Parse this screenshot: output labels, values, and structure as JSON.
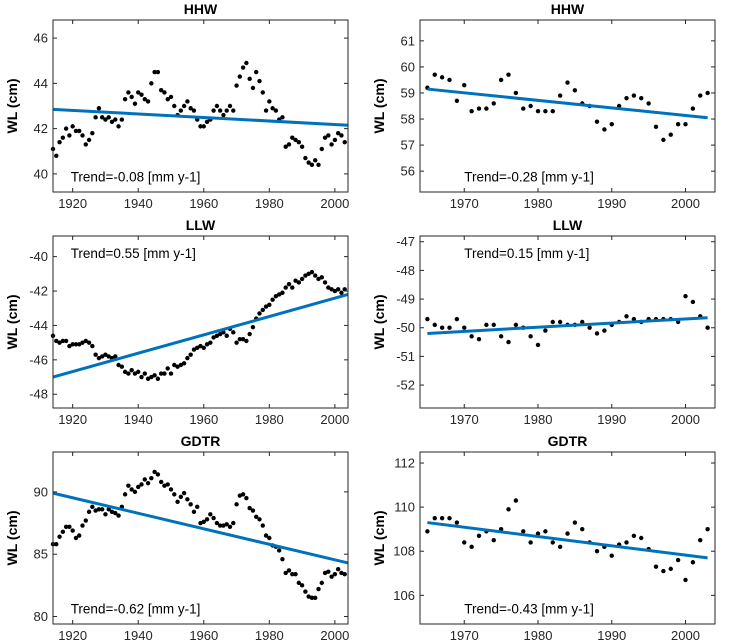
{
  "colors": {
    "trend_line": "#0072BD",
    "points": "#000000",
    "axes": "#262626"
  },
  "chart_data": [
    {
      "type": "scatter",
      "title": "HHW",
      "ylabel": "WL (cm)",
      "xlabel": "",
      "xlim": [
        1914,
        2004
      ],
      "ylim": [
        39.2,
        46.8
      ],
      "xticks": [
        1920,
        1940,
        1960,
        1980,
        2000
      ],
      "yticks": [
        40,
        42,
        44,
        46
      ],
      "trend_label": "Trend=-0.08 [mm y-1]",
      "trend_line": {
        "x": [
          1914,
          2004
        ],
        "y": [
          42.85,
          42.15
        ]
      },
      "x": [
        1914,
        1915,
        1916,
        1917,
        1918,
        1919,
        1920,
        1921,
        1922,
        1923,
        1924,
        1925,
        1926,
        1927,
        1928,
        1929,
        1930,
        1931,
        1932,
        1933,
        1934,
        1935,
        1936,
        1937,
        1938,
        1939,
        1940,
        1941,
        1942,
        1943,
        1944,
        1945,
        1946,
        1947,
        1948,
        1949,
        1950,
        1951,
        1952,
        1953,
        1954,
        1955,
        1956,
        1957,
        1958,
        1959,
        1960,
        1961,
        1962,
        1963,
        1964,
        1965,
        1966,
        1967,
        1968,
        1969,
        1970,
        1971,
        1972,
        1973,
        1974,
        1975,
        1976,
        1977,
        1978,
        1979,
        1980,
        1981,
        1982,
        1983,
        1984,
        1985,
        1986,
        1987,
        1988,
        1989,
        1990,
        1991,
        1992,
        1993,
        1994,
        1995,
        1996,
        1997,
        1998,
        1999,
        2000,
        2001,
        2002,
        2003
      ],
      "y": [
        41.1,
        40.8,
        41.4,
        41.6,
        42.0,
        41.7,
        42.1,
        41.9,
        41.9,
        41.7,
        41.3,
        41.5,
        41.8,
        42.5,
        42.9,
        42.5,
        42.4,
        42.5,
        42.3,
        42.4,
        42.1,
        42.4,
        43.3,
        43.6,
        43.4,
        43.1,
        43.6,
        43.5,
        43.3,
        43.2,
        44.0,
        44.5,
        44.5,
        43.7,
        43.6,
        43.3,
        43.4,
        43.0,
        42.6,
        42.8,
        43.0,
        43.2,
        42.9,
        42.8,
        42.4,
        42.1,
        42.1,
        42.3,
        42.4,
        42.8,
        43.0,
        42.8,
        42.6,
        42.8,
        43.0,
        42.8,
        43.9,
        44.3,
        44.7,
        44.9,
        44.2,
        43.8,
        44.5,
        44.1,
        43.6,
        42.8,
        43.2,
        42.9,
        42.8,
        42.4,
        42.5,
        41.2,
        41.3,
        41.6,
        41.5,
        41.4,
        41.2,
        40.7,
        40.5,
        40.4,
        40.6,
        40.4,
        41.1,
        41.6,
        41.7,
        41.3,
        41.5,
        41.8,
        41.7,
        41.4
      ]
    },
    {
      "type": "scatter",
      "title": "HHW",
      "ylabel": "WL (cm)",
      "xlabel": "",
      "xlim": [
        1964,
        2004
      ],
      "ylim": [
        55.2,
        61.8
      ],
      "xticks": [
        1970,
        1980,
        1990,
        2000
      ],
      "yticks": [
        56,
        57,
        58,
        59,
        60,
        61
      ],
      "trend_label": "Trend=-0.28 [mm y-1]",
      "trend_line": {
        "x": [
          1965,
          2003
        ],
        "y": [
          59.15,
          58.05
        ]
      },
      "x": [
        1965,
        1966,
        1967,
        1968,
        1969,
        1970,
        1971,
        1972,
        1973,
        1974,
        1975,
        1976,
        1977,
        1978,
        1979,
        1980,
        1981,
        1982,
        1983,
        1984,
        1985,
        1986,
        1987,
        1988,
        1989,
        1990,
        1991,
        1992,
        1993,
        1994,
        1995,
        1996,
        1997,
        1998,
        1999,
        2000,
        2001,
        2002,
        2003
      ],
      "y": [
        59.2,
        59.7,
        59.6,
        59.5,
        58.7,
        59.3,
        58.3,
        58.4,
        58.4,
        58.6,
        59.5,
        59.7,
        59.0,
        58.4,
        58.5,
        58.3,
        58.3,
        58.3,
        58.9,
        59.4,
        59.1,
        58.6,
        58.5,
        57.9,
        57.6,
        57.8,
        58.5,
        58.8,
        58.9,
        58.8,
        58.6,
        57.7,
        57.2,
        57.4,
        57.8,
        57.8,
        58.4,
        58.9,
        59.0
      ]
    },
    {
      "type": "scatter",
      "title": "LLW",
      "ylabel": "WL (cm)",
      "xlabel": "",
      "xlim": [
        1914,
        2004
      ],
      "ylim": [
        -48.8,
        -38.8
      ],
      "xticks": [
        1920,
        1940,
        1960,
        1980,
        2000
      ],
      "yticks": [
        -48,
        -46,
        -44,
        -42,
        -40
      ],
      "trend_label": "Trend=0.55 [mm y-1]",
      "trend_line": {
        "x": [
          1914,
          2004
        ],
        "y": [
          -47.0,
          -42.2
        ]
      },
      "x": [
        1914,
        1915,
        1916,
        1917,
        1918,
        1919,
        1920,
        1921,
        1922,
        1923,
        1924,
        1925,
        1926,
        1927,
        1928,
        1929,
        1930,
        1931,
        1932,
        1933,
        1934,
        1935,
        1936,
        1937,
        1938,
        1939,
        1940,
        1941,
        1942,
        1943,
        1944,
        1945,
        1946,
        1947,
        1948,
        1949,
        1950,
        1951,
        1952,
        1953,
        1954,
        1955,
        1956,
        1957,
        1958,
        1959,
        1960,
        1961,
        1962,
        1963,
        1964,
        1965,
        1966,
        1967,
        1968,
        1969,
        1970,
        1971,
        1972,
        1973,
        1974,
        1975,
        1976,
        1977,
        1978,
        1979,
        1980,
        1981,
        1982,
        1983,
        1984,
        1985,
        1986,
        1987,
        1988,
        1989,
        1990,
        1991,
        1992,
        1993,
        1994,
        1995,
        1996,
        1997,
        1998,
        1999,
        2000,
        2001,
        2002,
        2003
      ],
      "y": [
        -44.6,
        -44.9,
        -45.0,
        -44.9,
        -44.9,
        -45.2,
        -45.1,
        -45.1,
        -45.1,
        -45.0,
        -44.9,
        -45.0,
        -45.2,
        -45.7,
        -45.9,
        -45.8,
        -45.7,
        -45.8,
        -45.9,
        -45.8,
        -46.3,
        -46.4,
        -46.7,
        -46.8,
        -46.6,
        -46.8,
        -46.7,
        -47.0,
        -46.8,
        -47.1,
        -47.0,
        -46.9,
        -47.1,
        -46.8,
        -46.8,
        -46.5,
        -46.8,
        -46.3,
        -46.4,
        -46.3,
        -46.2,
        -45.9,
        -45.7,
        -45.4,
        -45.3,
        -45.2,
        -45.3,
        -45.1,
        -45.0,
        -44.7,
        -44.6,
        -44.5,
        -44.4,
        -44.6,
        -44.2,
        -44.4,
        -45.0,
        -44.8,
        -44.8,
        -44.9,
        -44.5,
        -44.1,
        -43.6,
        -43.3,
        -43.1,
        -42.9,
        -42.8,
        -42.5,
        -42.3,
        -42.2,
        -42.1,
        -41.8,
        -41.6,
        -41.8,
        -41.4,
        -41.5,
        -41.3,
        -41.1,
        -41.0,
        -40.9,
        -41.1,
        -41.3,
        -41.2,
        -41.5,
        -41.8,
        -41.9,
        -42.0,
        -41.9,
        -42.1,
        -41.9
      ]
    },
    {
      "type": "scatter",
      "title": "LLW",
      "ylabel": "WL (cm)",
      "xlabel": "",
      "xlim": [
        1964,
        2004
      ],
      "ylim": [
        -52.8,
        -46.8
      ],
      "xticks": [
        1970,
        1980,
        1990,
        2000
      ],
      "yticks": [
        -52,
        -51,
        -50,
        -49,
        -48,
        -47
      ],
      "trend_label": "Trend=0.15 [mm y-1]",
      "trend_line": {
        "x": [
          1965,
          2003
        ],
        "y": [
          -50.2,
          -49.65
        ]
      },
      "x": [
        1965,
        1966,
        1967,
        1968,
        1969,
        1970,
        1971,
        1972,
        1973,
        1974,
        1975,
        1976,
        1977,
        1978,
        1979,
        1980,
        1981,
        1982,
        1983,
        1984,
        1985,
        1986,
        1987,
        1988,
        1989,
        1990,
        1991,
        1992,
        1993,
        1994,
        1995,
        1996,
        1997,
        1998,
        1999,
        2000,
        2001,
        2002,
        2003
      ],
      "y": [
        -49.7,
        -49.9,
        -50.0,
        -50.0,
        -49.7,
        -50.0,
        -50.3,
        -50.4,
        -49.9,
        -49.9,
        -50.3,
        -50.5,
        -49.9,
        -50.0,
        -50.3,
        -50.6,
        -50.1,
        -49.8,
        -49.8,
        -49.9,
        -49.9,
        -49.8,
        -50.0,
        -50.2,
        -50.1,
        -49.9,
        -49.8,
        -49.6,
        -49.7,
        -49.8,
        -49.7,
        -49.7,
        -49.7,
        -49.7,
        -49.8,
        -48.9,
        -49.1,
        -49.6,
        -50.0
      ]
    },
    {
      "type": "scatter",
      "title": "GDTR",
      "ylabel": "WL (cm)",
      "xlabel": "",
      "xlim": [
        1914,
        2004
      ],
      "ylim": [
        79.4,
        93.2
      ],
      "xticks": [
        1920,
        1940,
        1960,
        1980,
        2000
      ],
      "yticks": [
        80,
        85,
        90
      ],
      "trend_label": "Trend=-0.62 [mm y-1]",
      "trend_line": {
        "x": [
          1914,
          2004
        ],
        "y": [
          89.9,
          84.3
        ]
      },
      "x": [
        1914,
        1915,
        1916,
        1917,
        1918,
        1919,
        1920,
        1921,
        1922,
        1923,
        1924,
        1925,
        1926,
        1927,
        1928,
        1929,
        1930,
        1931,
        1932,
        1933,
        1934,
        1935,
        1936,
        1937,
        1938,
        1939,
        1940,
        1941,
        1942,
        1943,
        1944,
        1945,
        1946,
        1947,
        1948,
        1949,
        1950,
        1951,
        1952,
        1953,
        1954,
        1955,
        1956,
        1957,
        1958,
        1959,
        1960,
        1961,
        1962,
        1963,
        1964,
        1965,
        1966,
        1967,
        1968,
        1969,
        1970,
        1971,
        1972,
        1973,
        1974,
        1975,
        1976,
        1977,
        1978,
        1979,
        1980,
        1981,
        1982,
        1983,
        1984,
        1985,
        1986,
        1987,
        1988,
        1989,
        1990,
        1991,
        1992,
        1993,
        1994,
        1995,
        1996,
        1997,
        1998,
        1999,
        2000,
        2001,
        2002,
        2003
      ],
      "y": [
        85.8,
        85.8,
        86.4,
        86.8,
        87.2,
        87.2,
        86.9,
        86.3,
        86.5,
        87.3,
        87.7,
        88.4,
        88.8,
        88.5,
        88.6,
        88.6,
        88.2,
        88.6,
        88.4,
        88.3,
        88.1,
        88.8,
        89.8,
        90.5,
        90.2,
        90.0,
        90.4,
        90.6,
        91.0,
        90.7,
        91.1,
        91.6,
        91.4,
        90.8,
        90.5,
        90.6,
        90.2,
        89.8,
        89.2,
        89.6,
        89.9,
        89.4,
        89.0,
        88.4,
        88.8,
        87.5,
        87.6,
        87.8,
        88.2,
        87.9,
        87.5,
        87.3,
        87.3,
        87.4,
        87.2,
        87.5,
        89.0,
        89.7,
        89.8,
        89.5,
        88.7,
        88.5,
        88.0,
        87.8,
        87.3,
        86.5,
        86.3,
        85.7,
        85.6,
        85.3,
        84.6,
        83.5,
        83.7,
        83.4,
        83.4,
        82.7,
        82.5,
        82.0,
        81.6,
        81.5,
        81.5,
        82.2,
        82.7,
        83.5,
        83.6,
        83.2,
        83.4,
        83.8,
        83.5,
        83.4
      ]
    },
    {
      "type": "scatter",
      "title": "GDTR",
      "ylabel": "WL (cm)",
      "xlabel": "",
      "xlim": [
        1964,
        2004
      ],
      "ylim": [
        104.7,
        112.5
      ],
      "xticks": [
        1970,
        1980,
        1990,
        2000
      ],
      "yticks": [
        106,
        108,
        110,
        112
      ],
      "trend_label": "Trend=-0.43 [mm y-1]",
      "trend_line": {
        "x": [
          1965,
          2003
        ],
        "y": [
          109.3,
          107.7
        ]
      },
      "x": [
        1965,
        1966,
        1967,
        1968,
        1969,
        1970,
        1971,
        1972,
        1973,
        1974,
        1975,
        1976,
        1977,
        1978,
        1979,
        1980,
        1981,
        1982,
        1983,
        1984,
        1985,
        1986,
        1987,
        1988,
        1989,
        1990,
        1991,
        1992,
        1993,
        1994,
        1995,
        1996,
        1997,
        1998,
        1999,
        2000,
        2001,
        2002,
        2003
      ],
      "y": [
        108.9,
        109.5,
        109.5,
        109.5,
        109.3,
        108.4,
        108.2,
        108.7,
        108.9,
        108.5,
        109.0,
        109.9,
        110.3,
        108.9,
        108.4,
        108.8,
        108.9,
        108.4,
        108.2,
        108.8,
        109.3,
        109.0,
        108.4,
        108.0,
        108.2,
        107.8,
        108.3,
        108.4,
        108.7,
        108.6,
        108.1,
        107.3,
        107.1,
        107.2,
        107.6,
        106.7,
        107.5,
        108.5,
        109.0
      ]
    }
  ]
}
